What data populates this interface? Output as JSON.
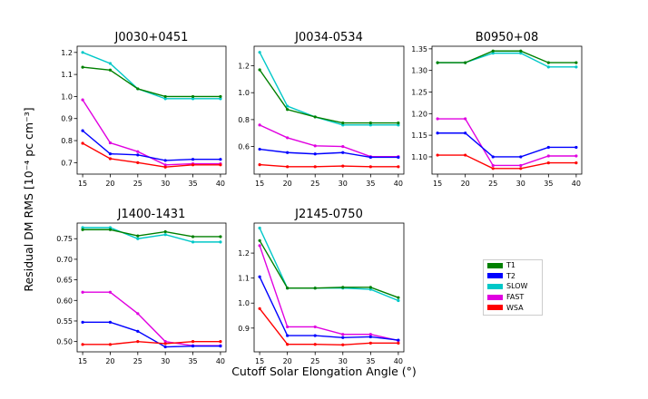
{
  "figure": {
    "ylabel": "Residual DM RMS [10⁻⁴ pc cm⁻³]",
    "xlabel": "Cutoff Solar Elongation Angle (°)"
  },
  "legend": {
    "entries": [
      {
        "name": "T1",
        "color": "#008000"
      },
      {
        "name": "T2",
        "color": "#0000ff"
      },
      {
        "name": "SLOW",
        "color": "#00c8c8"
      },
      {
        "name": "FAST",
        "color": "#e000e0"
      },
      {
        "name": "WSA",
        "color": "#ff0000"
      }
    ]
  },
  "chart_data": [
    {
      "type": "line",
      "title": "J0030+0451",
      "x": [
        15,
        20,
        25,
        30,
        35,
        40
      ],
      "xticks": [
        "15",
        "20",
        "25",
        "30",
        "35",
        "40"
      ],
      "yticks": [
        "0.7",
        "0.8",
        "0.9",
        "1.0",
        "1.1",
        "1.2"
      ],
      "ytick_values": [
        0.7,
        0.8,
        0.9,
        1.0,
        1.1,
        1.2
      ],
      "ylim": [
        0.648,
        1.228
      ],
      "series": [
        {
          "name": "SLOW",
          "color": "#00c8c8",
          "values": [
            1.2,
            1.15,
            1.035,
            0.99,
            0.99,
            0.99
          ]
        },
        {
          "name": "T1",
          "color": "#008000",
          "values": [
            1.133,
            1.12,
            1.035,
            1.0,
            1.0,
            1.0
          ]
        },
        {
          "name": "FAST",
          "color": "#e000e0",
          "values": [
            0.985,
            0.79,
            0.75,
            0.69,
            0.695,
            0.695
          ]
        },
        {
          "name": "T2",
          "color": "#0000ff",
          "values": [
            0.845,
            0.74,
            0.735,
            0.71,
            0.715,
            0.715
          ]
        },
        {
          "name": "WSA",
          "color": "#ff0000",
          "values": [
            0.788,
            0.718,
            0.7,
            0.68,
            0.69,
            0.69
          ]
        }
      ]
    },
    {
      "type": "line",
      "title": "J0034-0534",
      "x": [
        15,
        20,
        25,
        30,
        35,
        40
      ],
      "xticks": [
        "15",
        "20",
        "25",
        "30",
        "35",
        "40"
      ],
      "yticks": [
        "0.6",
        "0.8",
        "1.0",
        "1.2"
      ],
      "ytick_values": [
        0.6,
        0.8,
        1.0,
        1.2
      ],
      "ylim": [
        0.395,
        1.345
      ],
      "series": [
        {
          "name": "SLOW",
          "color": "#00c8c8",
          "values": [
            1.3,
            0.9,
            0.82,
            0.76,
            0.76,
            0.76
          ]
        },
        {
          "name": "T1",
          "color": "#008000",
          "values": [
            1.17,
            0.875,
            0.82,
            0.775,
            0.775,
            0.775
          ]
        },
        {
          "name": "FAST",
          "color": "#e000e0",
          "values": [
            0.76,
            0.665,
            0.605,
            0.6,
            0.525,
            0.525
          ]
        },
        {
          "name": "T2",
          "color": "#0000ff",
          "values": [
            0.58,
            0.555,
            0.545,
            0.555,
            0.52,
            0.52
          ]
        },
        {
          "name": "WSA",
          "color": "#ff0000",
          "values": [
            0.465,
            0.45,
            0.45,
            0.455,
            0.45,
            0.45
          ]
        }
      ]
    },
    {
      "type": "line",
      "title": "B0950+08",
      "x": [
        15,
        20,
        25,
        30,
        35,
        40
      ],
      "xticks": [
        "15",
        "20",
        "25",
        "30",
        "35",
        "40"
      ],
      "yticks": [
        "1.10",
        "1.15",
        "1.20",
        "1.25",
        "1.30",
        "1.35"
      ],
      "ytick_values": [
        1.1,
        1.15,
        1.2,
        1.25,
        1.3,
        1.35
      ],
      "ylim": [
        1.06,
        1.356
      ],
      "series": [
        {
          "name": "SLOW",
          "color": "#00c8c8",
          "values": [
            1.318,
            1.318,
            1.34,
            1.34,
            1.308,
            1.308
          ]
        },
        {
          "name": "T1",
          "color": "#008000",
          "values": [
            1.318,
            1.318,
            1.345,
            1.345,
            1.318,
            1.318
          ]
        },
        {
          "name": "FAST",
          "color": "#e000e0",
          "values": [
            1.188,
            1.188,
            1.08,
            1.08,
            1.102,
            1.102
          ]
        },
        {
          "name": "T2",
          "color": "#0000ff",
          "values": [
            1.155,
            1.155,
            1.1,
            1.1,
            1.122,
            1.122
          ]
        },
        {
          "name": "WSA",
          "color": "#ff0000",
          "values": [
            1.104,
            1.104,
            1.073,
            1.073,
            1.086,
            1.086
          ]
        }
      ]
    },
    {
      "type": "line",
      "title": "J1400-1431",
      "x": [
        15,
        20,
        25,
        30,
        35,
        40
      ],
      "xticks": [
        "15",
        "20",
        "25",
        "30",
        "35",
        "40"
      ],
      "yticks": [
        "0.50",
        "0.55",
        "0.60",
        "0.65",
        "0.70",
        "0.75"
      ],
      "ytick_values": [
        0.5,
        0.55,
        0.6,
        0.65,
        0.7,
        0.75
      ],
      "ylim": [
        0.475,
        0.788
      ],
      "series": [
        {
          "name": "SLOW",
          "color": "#00c8c8",
          "values": [
            0.777,
            0.777,
            0.75,
            0.76,
            0.742,
            0.742
          ]
        },
        {
          "name": "T1",
          "color": "#008000",
          "values": [
            0.772,
            0.772,
            0.757,
            0.767,
            0.755,
            0.755
          ]
        },
        {
          "name": "FAST",
          "color": "#e000e0",
          "values": [
            0.62,
            0.62,
            0.568,
            0.5,
            0.49,
            0.49
          ]
        },
        {
          "name": "T2",
          "color": "#0000ff",
          "values": [
            0.547,
            0.547,
            0.525,
            0.487,
            0.489,
            0.489
          ]
        },
        {
          "name": "WSA",
          "color": "#ff0000",
          "values": [
            0.493,
            0.493,
            0.5,
            0.495,
            0.5,
            0.5
          ]
        }
      ]
    },
    {
      "type": "line",
      "title": "J2145-0750",
      "x": [
        15,
        20,
        25,
        30,
        35,
        40
      ],
      "xticks": [
        "15",
        "20",
        "25",
        "30",
        "35",
        "40"
      ],
      "yticks": [
        "0.9",
        "1.0",
        "1.1",
        "1.2"
      ],
      "ytick_values": [
        0.9,
        1.0,
        1.1,
        1.2
      ],
      "ylim": [
        0.805,
        1.32
      ],
      "series": [
        {
          "name": "SLOW",
          "color": "#00c8c8",
          "values": [
            1.3,
            1.06,
            1.06,
            1.06,
            1.055,
            1.01
          ]
        },
        {
          "name": "T1",
          "color": "#008000",
          "values": [
            1.25,
            1.06,
            1.06,
            1.063,
            1.063,
            1.022
          ]
        },
        {
          "name": "FAST",
          "color": "#e000e0",
          "values": [
            1.23,
            0.905,
            0.905,
            0.875,
            0.875,
            0.85
          ]
        },
        {
          "name": "T2",
          "color": "#0000ff",
          "values": [
            1.105,
            0.87,
            0.87,
            0.862,
            0.865,
            0.852
          ]
        },
        {
          "name": "WSA",
          "color": "#ff0000",
          "values": [
            0.978,
            0.835,
            0.835,
            0.833,
            0.84,
            0.84
          ]
        }
      ]
    }
  ]
}
